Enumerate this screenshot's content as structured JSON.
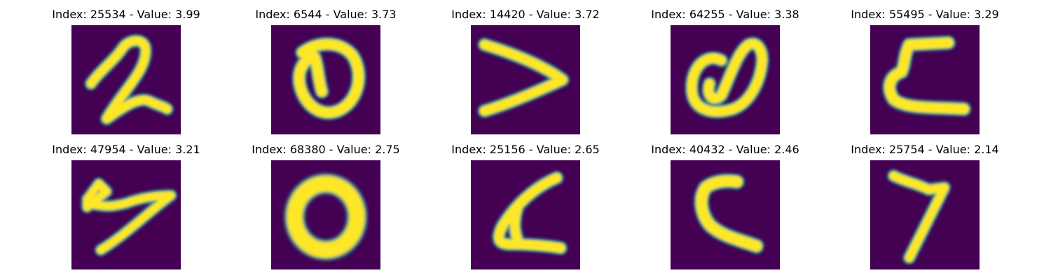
{
  "colors": {
    "background": "#ffffff",
    "image_bg": "#440154",
    "stroke_core": "#fde725",
    "stroke_edge": "#21918c",
    "stroke_mid": "#5ec962"
  },
  "panels": [
    {
      "index": "25534",
      "value": "3.99",
      "title": "Index: 25534 - Value: 3.99",
      "glyph": "handwritten-2"
    },
    {
      "index": "6544",
      "value": "3.73",
      "title": "Index: 6544 - Value: 3.73",
      "glyph": "handwritten-0"
    },
    {
      "index": "14420",
      "value": "3.72",
      "title": "Index: 14420 - Value: 3.72",
      "glyph": "handwritten-v"
    },
    {
      "index": "64255",
      "value": "3.38",
      "title": "Index: 64255 - Value: 3.38",
      "glyph": "handwritten-a"
    },
    {
      "index": "55495",
      "value": "3.29",
      "title": "Index: 55495 - Value: 3.29",
      "glyph": "handwritten-c-flat"
    },
    {
      "index": "47954",
      "value": "3.21",
      "title": "Index: 47954 - Value: 3.21",
      "glyph": "handwritten-4"
    },
    {
      "index": "68380",
      "value": "2.75",
      "title": "Index: 68380 - Value: 2.75",
      "glyph": "handwritten-0-round"
    },
    {
      "index": "25156",
      "value": "2.65",
      "title": "Index: 25156 - Value: 2.65",
      "glyph": "handwritten-a-open"
    },
    {
      "index": "40432",
      "value": "2.46",
      "title": "Index: 40432 - Value: 2.46",
      "glyph": "handwritten-c"
    },
    {
      "index": "25754",
      "value": "2.14",
      "title": "Index: 25754 - Value: 2.14",
      "glyph": "handwritten-7"
    }
  ]
}
